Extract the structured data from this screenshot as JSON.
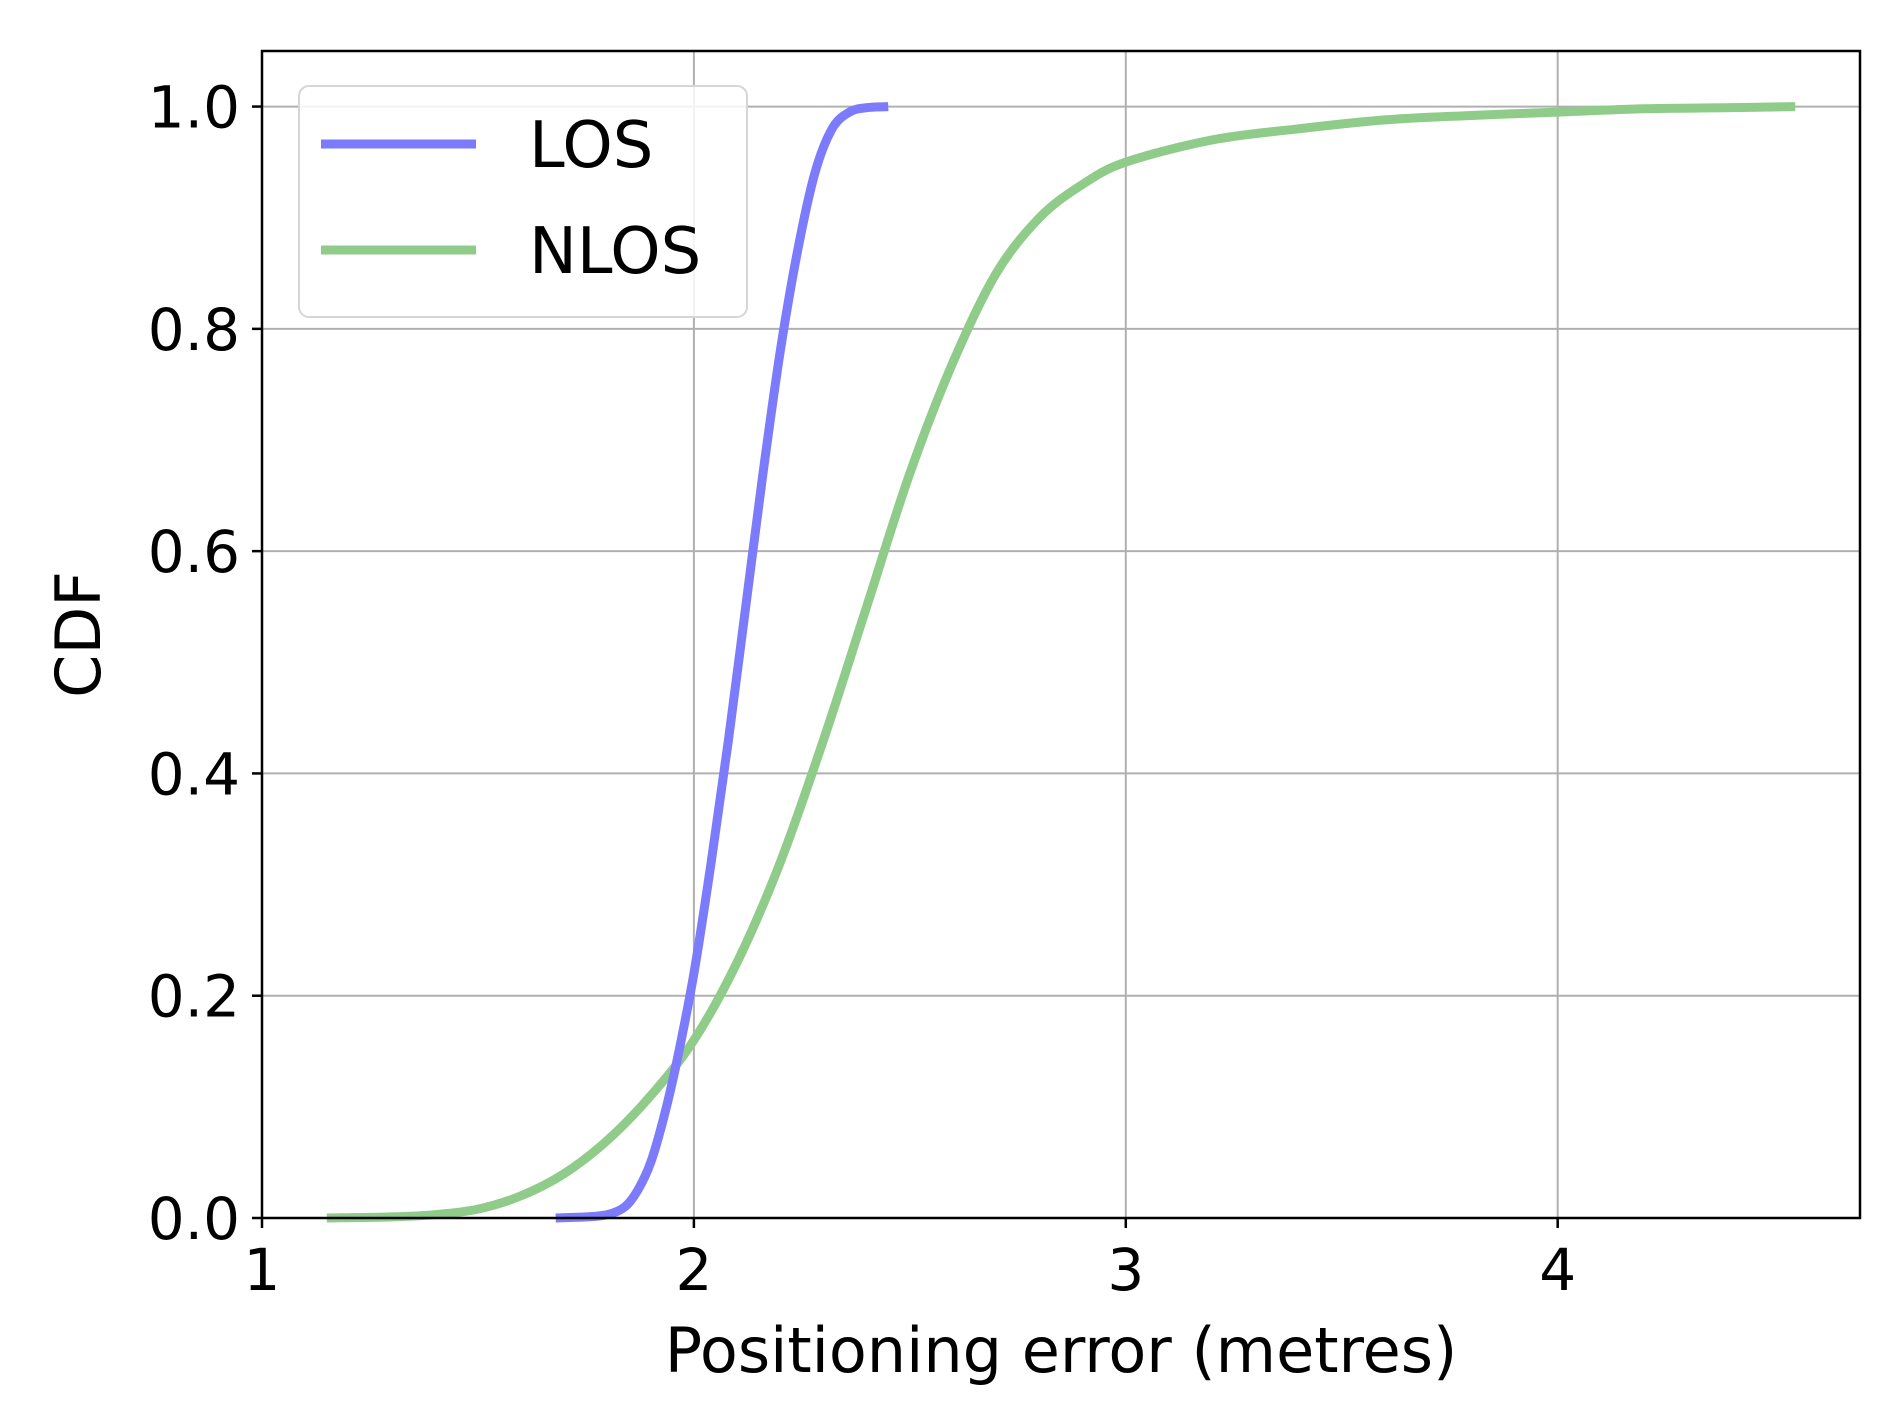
{
  "chart_data": {
    "type": "line",
    "title": "",
    "xlabel": "Positioning error (metres)",
    "ylabel": "CDF",
    "xlim": [
      1.0,
      4.7
    ],
    "ylim": [
      0.0,
      1.05
    ],
    "xticks": [
      1,
      2,
      3,
      4
    ],
    "xtick_labels": [
      "1",
      "2",
      "3",
      "4"
    ],
    "yticks": [
      0.0,
      0.2,
      0.4,
      0.6,
      0.8,
      1.0
    ],
    "ytick_labels": [
      "0.0",
      "0.2",
      "0.4",
      "0.6",
      "0.8",
      "1.0"
    ],
    "grid": true,
    "legend_position": "top-left",
    "series": [
      {
        "name": "LOS",
        "color": "#7b7bfb",
        "x": [
          1.68,
          1.75,
          1.8,
          1.84,
          1.87,
          1.9,
          1.93,
          1.96,
          2.0,
          2.04,
          2.08,
          2.12,
          2.16,
          2.2,
          2.24,
          2.28,
          2.32,
          2.36,
          2.4,
          2.45
        ],
        "y": [
          0.0,
          0.001,
          0.003,
          0.01,
          0.025,
          0.05,
          0.09,
          0.14,
          0.22,
          0.32,
          0.43,
          0.55,
          0.67,
          0.78,
          0.87,
          0.94,
          0.98,
          0.995,
          0.999,
          1.0
        ]
      },
      {
        "name": "NLOS",
        "color": "#8fcc8a",
        "x": [
          1.15,
          1.3,
          1.4,
          1.5,
          1.6,
          1.7,
          1.8,
          1.9,
          2.0,
          2.1,
          2.2,
          2.3,
          2.4,
          2.5,
          2.6,
          2.7,
          2.8,
          2.9,
          3.0,
          3.2,
          3.4,
          3.6,
          3.8,
          4.0,
          4.2,
          4.4,
          4.55
        ],
        "y": [
          0.0,
          0.001,
          0.003,
          0.008,
          0.02,
          0.04,
          0.07,
          0.11,
          0.16,
          0.23,
          0.32,
          0.43,
          0.55,
          0.67,
          0.77,
          0.85,
          0.9,
          0.93,
          0.95,
          0.97,
          0.98,
          0.988,
          0.992,
          0.995,
          0.998,
          0.999,
          1.0
        ]
      }
    ]
  }
}
